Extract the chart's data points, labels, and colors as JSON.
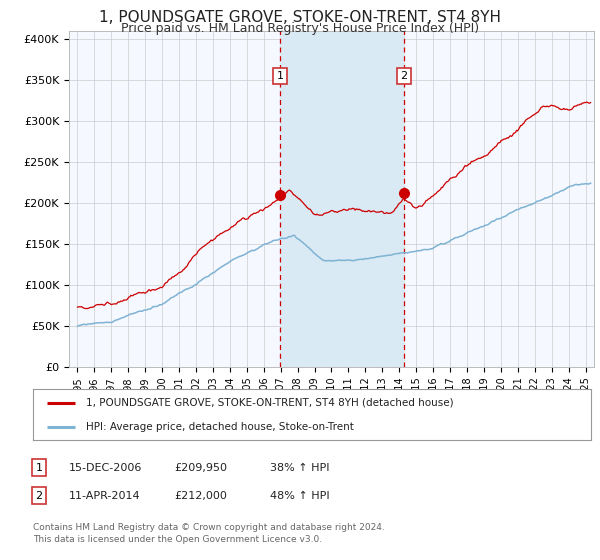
{
  "title": "1, POUNDSGATE GROVE, STOKE-ON-TRENT, ST4 8YH",
  "subtitle": "Price paid vs. HM Land Registry's House Price Index (HPI)",
  "title_fontsize": 11,
  "subtitle_fontsize": 9,
  "red_line_color": "#cc0000",
  "blue_line_color": "#7fb3d3",
  "shaded_color": "#daeaf5",
  "dashed_line_color": "#cc0000",
  "marker_color": "#cc0000",
  "transaction1_x": 2006.96,
  "transaction1_y": 209950,
  "transaction2_x": 2014.28,
  "transaction2_y": 212000,
  "legend_entries": [
    "1, POUNDSGATE GROVE, STOKE-ON-TRENT, ST4 8YH (detached house)",
    "HPI: Average price, detached house, Stoke-on-Trent"
  ],
  "table_rows": [
    {
      "num": "1",
      "date": "15-DEC-2006",
      "price": "£209,950",
      "pct": "38% ↑ HPI"
    },
    {
      "num": "2",
      "date": "11-APR-2014",
      "price": "£212,000",
      "pct": "48% ↑ HPI"
    }
  ],
  "footnote1": "Contains HM Land Registry data © Crown copyright and database right 2024.",
  "footnote2": "This data is licensed under the Open Government Licence v3.0.",
  "ylim": [
    0,
    410000
  ],
  "yticks": [
    0,
    50000,
    100000,
    150000,
    200000,
    250000,
    300000,
    350000,
    400000
  ],
  "ytick_labels": [
    "£0",
    "£50K",
    "£100K",
    "£150K",
    "£200K",
    "£250K",
    "£300K",
    "£350K",
    "£400K"
  ],
  "xlim_start": 1994.5,
  "xlim_end": 2025.5,
  "background_color": "#ffffff",
  "plot_background": "#f5f8ff"
}
